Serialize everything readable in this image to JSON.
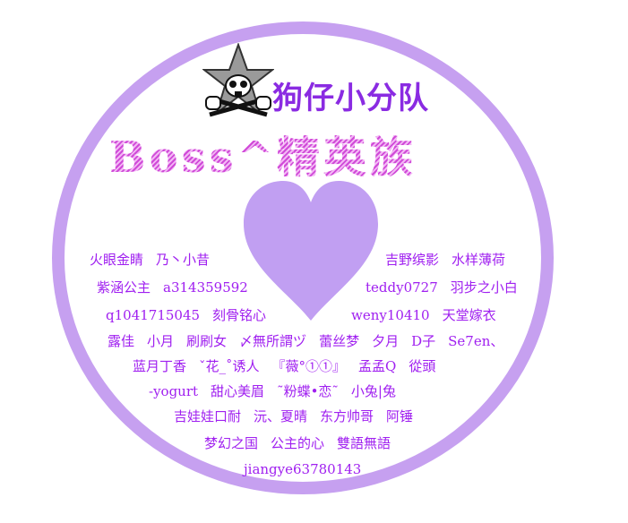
{
  "colors": {
    "ring": "#c6a0f0",
    "heart": "#c19ff2",
    "title": "#8a2be2",
    "subtitle": "#d04ad8",
    "names": "#a020f0"
  },
  "logo": {
    "icon": "skull-star-icon"
  },
  "title_line1": "狗仔小分队",
  "title_line2": "Boss^精英族",
  "heart": {
    "icon": "heart-icon"
  },
  "names_left": [
    [
      "火眼金睛",
      "乃丶小昔"
    ],
    [
      "紫涵公主",
      "a314359592"
    ],
    [
      "q1041715045",
      "刻骨铭心"
    ]
  ],
  "names_right": [
    [
      "吉野缤影",
      "水样薄荷"
    ],
    [
      "teddy0727",
      "羽步之小白"
    ],
    [
      "weny10410",
      "天堂嫁衣"
    ]
  ],
  "names_center": [
    [
      "露佳",
      "小月",
      "刷刷女",
      "〆無所謂ヅ",
      "蕾丝梦",
      "夕月",
      "D子",
      "Se7en、"
    ],
    [
      "蓝月丁香",
      "ˇ花_˚诱人",
      "『薇°①①』",
      "孟孟Q",
      "從頭"
    ],
    [
      "-yogurt",
      "甜心美眉",
      "˜粉蝶•恋˜",
      "小兔|兔"
    ],
    [
      "吉娃娃口耐",
      "沅、夏晴",
      "东方帅哥",
      "阿锤"
    ],
    [
      "梦幻之国",
      "公主的心",
      "雙語無語"
    ],
    [
      "jiangye63780143"
    ]
  ]
}
